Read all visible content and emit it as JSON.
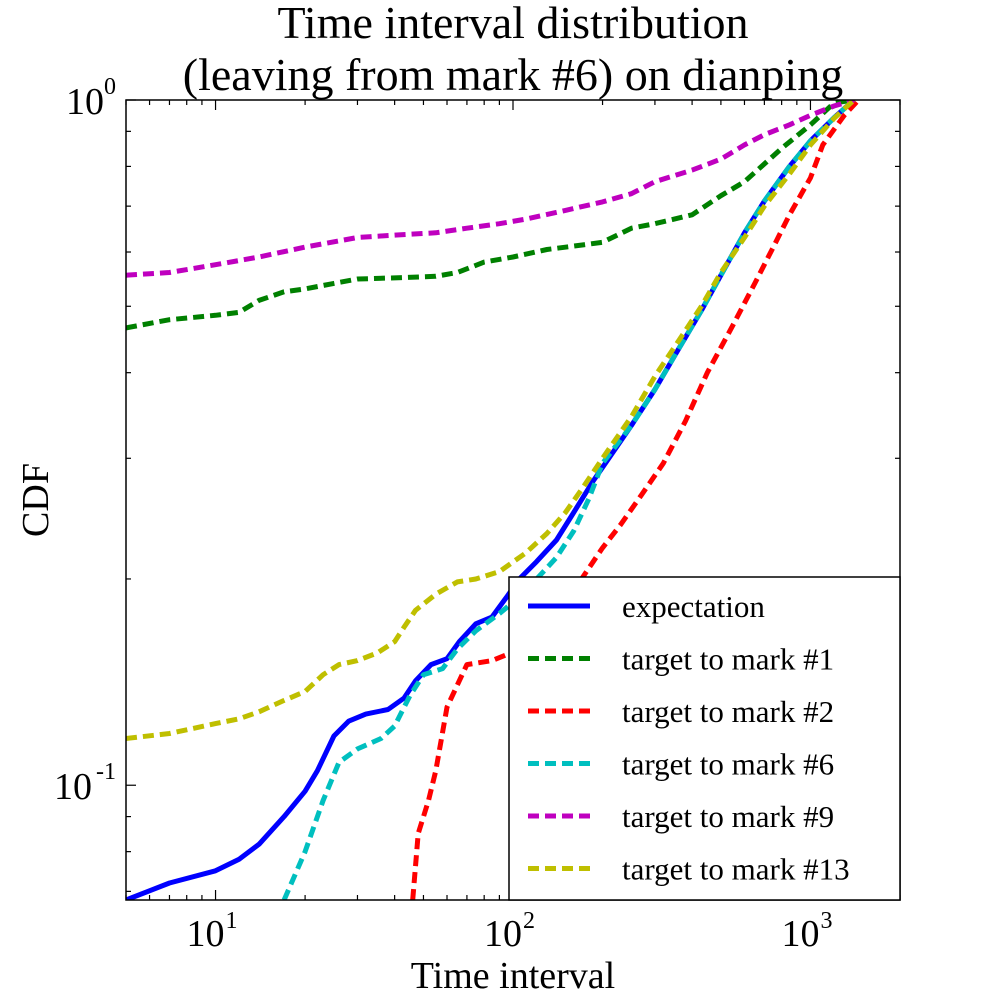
{
  "chart_data": {
    "type": "line",
    "title": [
      "Time interval distribution",
      "(leaving from mark #6) on dianping"
    ],
    "xlabel": "Time interval",
    "ylabel": "CDF",
    "xscale": "log",
    "yscale": "log",
    "xlim": [
      5,
      2000
    ],
    "ylim": [
      0.068,
      1.0
    ],
    "x_ticks": [
      {
        "value": 10,
        "base": "10",
        "exp": "1"
      },
      {
        "value": 100,
        "base": "10",
        "exp": "2"
      },
      {
        "value": 1000,
        "base": "10",
        "exp": "3"
      }
    ],
    "y_ticks": [
      {
        "value": 0.1,
        "base": "10",
        "exp": "-1"
      },
      {
        "value": 1.0,
        "base": "10",
        "exp": "0"
      }
    ],
    "legend_position": "lower-right",
    "series": [
      {
        "name": "expectation",
        "color": "#0000ff",
        "style": "solid",
        "points": [
          [
            5,
            0.068
          ],
          [
            7,
            0.072
          ],
          [
            10,
            0.075
          ],
          [
            12,
            0.078
          ],
          [
            14,
            0.082
          ],
          [
            17,
            0.09
          ],
          [
            20,
            0.098
          ],
          [
            22,
            0.105
          ],
          [
            25,
            0.118
          ],
          [
            28,
            0.124
          ],
          [
            32,
            0.127
          ],
          [
            38,
            0.129
          ],
          [
            43,
            0.134
          ],
          [
            47,
            0.142
          ],
          [
            53,
            0.15
          ],
          [
            60,
            0.153
          ],
          [
            66,
            0.162
          ],
          [
            75,
            0.172
          ],
          [
            85,
            0.176
          ],
          [
            95,
            0.188
          ],
          [
            105,
            0.2
          ],
          [
            120,
            0.212
          ],
          [
            140,
            0.228
          ],
          [
            160,
            0.25
          ],
          [
            185,
            0.277
          ],
          [
            210,
            0.3
          ],
          [
            250,
            0.335
          ],
          [
            300,
            0.378
          ],
          [
            360,
            0.433
          ],
          [
            430,
            0.493
          ],
          [
            500,
            0.555
          ],
          [
            600,
            0.64
          ],
          [
            700,
            0.712
          ],
          [
            850,
            0.8
          ],
          [
            1000,
            0.872
          ],
          [
            1200,
            0.942
          ],
          [
            1400,
            1.0
          ]
        ]
      },
      {
        "name": "target to mark #1",
        "color": "#008000",
        "style": "dashed",
        "points": [
          [
            5,
            0.465
          ],
          [
            7,
            0.478
          ],
          [
            10,
            0.485
          ],
          [
            12,
            0.49
          ],
          [
            14,
            0.51
          ],
          [
            17,
            0.525
          ],
          [
            20,
            0.53
          ],
          [
            25,
            0.54
          ],
          [
            30,
            0.548
          ],
          [
            40,
            0.55
          ],
          [
            55,
            0.553
          ],
          [
            65,
            0.56
          ],
          [
            80,
            0.58
          ],
          [
            100,
            0.59
          ],
          [
            130,
            0.605
          ],
          [
            160,
            0.612
          ],
          [
            200,
            0.62
          ],
          [
            250,
            0.65
          ],
          [
            300,
            0.66
          ],
          [
            400,
            0.68
          ],
          [
            500,
            0.725
          ],
          [
            600,
            0.76
          ],
          [
            800,
            0.85
          ],
          [
            1000,
            0.92
          ],
          [
            1200,
            0.99
          ],
          [
            1400,
            1.0
          ]
        ]
      },
      {
        "name": "target to mark #2",
        "color": "#ff0000",
        "style": "dashed",
        "points": [
          [
            46,
            0.068
          ],
          [
            48,
            0.085
          ],
          [
            52,
            0.095
          ],
          [
            55,
            0.105
          ],
          [
            60,
            0.13
          ],
          [
            65,
            0.14
          ],
          [
            70,
            0.15
          ],
          [
            85,
            0.152
          ],
          [
            95,
            0.155
          ],
          [
            110,
            0.16
          ],
          [
            130,
            0.17
          ],
          [
            150,
            0.185
          ],
          [
            170,
            0.2
          ],
          [
            200,
            0.222
          ],
          [
            230,
            0.24
          ],
          [
            270,
            0.265
          ],
          [
            320,
            0.295
          ],
          [
            380,
            0.34
          ],
          [
            450,
            0.4
          ],
          [
            550,
            0.47
          ],
          [
            650,
            0.54
          ],
          [
            750,
            0.61
          ],
          [
            850,
            0.68
          ],
          [
            1000,
            0.77
          ],
          [
            1100,
            0.86
          ],
          [
            1300,
            0.95
          ],
          [
            1450,
            1.0
          ]
        ]
      },
      {
        "name": "target to mark #6",
        "color": "#00bfbf",
        "style": "dashed",
        "points": [
          [
            17,
            0.068
          ],
          [
            20,
            0.08
          ],
          [
            23,
            0.095
          ],
          [
            26,
            0.108
          ],
          [
            30,
            0.113
          ],
          [
            36,
            0.117
          ],
          [
            40,
            0.122
          ],
          [
            45,
            0.135
          ],
          [
            50,
            0.145
          ],
          [
            58,
            0.148
          ],
          [
            65,
            0.158
          ],
          [
            75,
            0.168
          ],
          [
            90,
            0.178
          ],
          [
            100,
            0.185
          ],
          [
            120,
            0.2
          ],
          [
            140,
            0.215
          ],
          [
            160,
            0.235
          ],
          [
            180,
            0.262
          ],
          [
            200,
            0.295
          ],
          [
            250,
            0.335
          ],
          [
            300,
            0.378
          ],
          [
            360,
            0.433
          ],
          [
            430,
            0.493
          ],
          [
            500,
            0.555
          ],
          [
            600,
            0.64
          ],
          [
            700,
            0.712
          ],
          [
            850,
            0.8
          ],
          [
            1000,
            0.872
          ],
          [
            1200,
            0.942
          ],
          [
            1400,
            1.0
          ]
        ]
      },
      {
        "name": "target to mark #9",
        "color": "#bf00bf",
        "style": "dashed",
        "points": [
          [
            5,
            0.555
          ],
          [
            7,
            0.56
          ],
          [
            10,
            0.575
          ],
          [
            14,
            0.59
          ],
          [
            20,
            0.61
          ],
          [
            30,
            0.63
          ],
          [
            40,
            0.635
          ],
          [
            55,
            0.64
          ],
          [
            70,
            0.65
          ],
          [
            90,
            0.66
          ],
          [
            110,
            0.67
          ],
          [
            150,
            0.69
          ],
          [
            200,
            0.71
          ],
          [
            250,
            0.73
          ],
          [
            300,
            0.76
          ],
          [
            400,
            0.79
          ],
          [
            500,
            0.82
          ],
          [
            600,
            0.86
          ],
          [
            700,
            0.89
          ],
          [
            850,
            0.92
          ],
          [
            1000,
            0.95
          ],
          [
            1200,
            0.98
          ],
          [
            1400,
            1.0
          ]
        ]
      },
      {
        "name": "target to mark #13",
        "color": "#bfbf00",
        "style": "dashed",
        "points": [
          [
            5,
            0.117
          ],
          [
            7,
            0.119
          ],
          [
            10,
            0.123
          ],
          [
            12,
            0.125
          ],
          [
            14,
            0.128
          ],
          [
            17,
            0.133
          ],
          [
            20,
            0.137
          ],
          [
            23,
            0.145
          ],
          [
            26,
            0.15
          ],
          [
            30,
            0.152
          ],
          [
            35,
            0.156
          ],
          [
            40,
            0.162
          ],
          [
            43,
            0.17
          ],
          [
            47,
            0.18
          ],
          [
            55,
            0.19
          ],
          [
            65,
            0.198
          ],
          [
            75,
            0.2
          ],
          [
            90,
            0.205
          ],
          [
            110,
            0.218
          ],
          [
            130,
            0.233
          ],
          [
            150,
            0.25
          ],
          [
            170,
            0.27
          ],
          [
            200,
            0.3
          ],
          [
            250,
            0.345
          ],
          [
            300,
            0.395
          ],
          [
            360,
            0.445
          ],
          [
            430,
            0.5
          ],
          [
            500,
            0.56
          ],
          [
            600,
            0.63
          ],
          [
            700,
            0.7
          ],
          [
            850,
            0.78
          ],
          [
            1000,
            0.86
          ],
          [
            1200,
            0.94
          ],
          [
            1400,
            1.0
          ]
        ]
      }
    ]
  }
}
